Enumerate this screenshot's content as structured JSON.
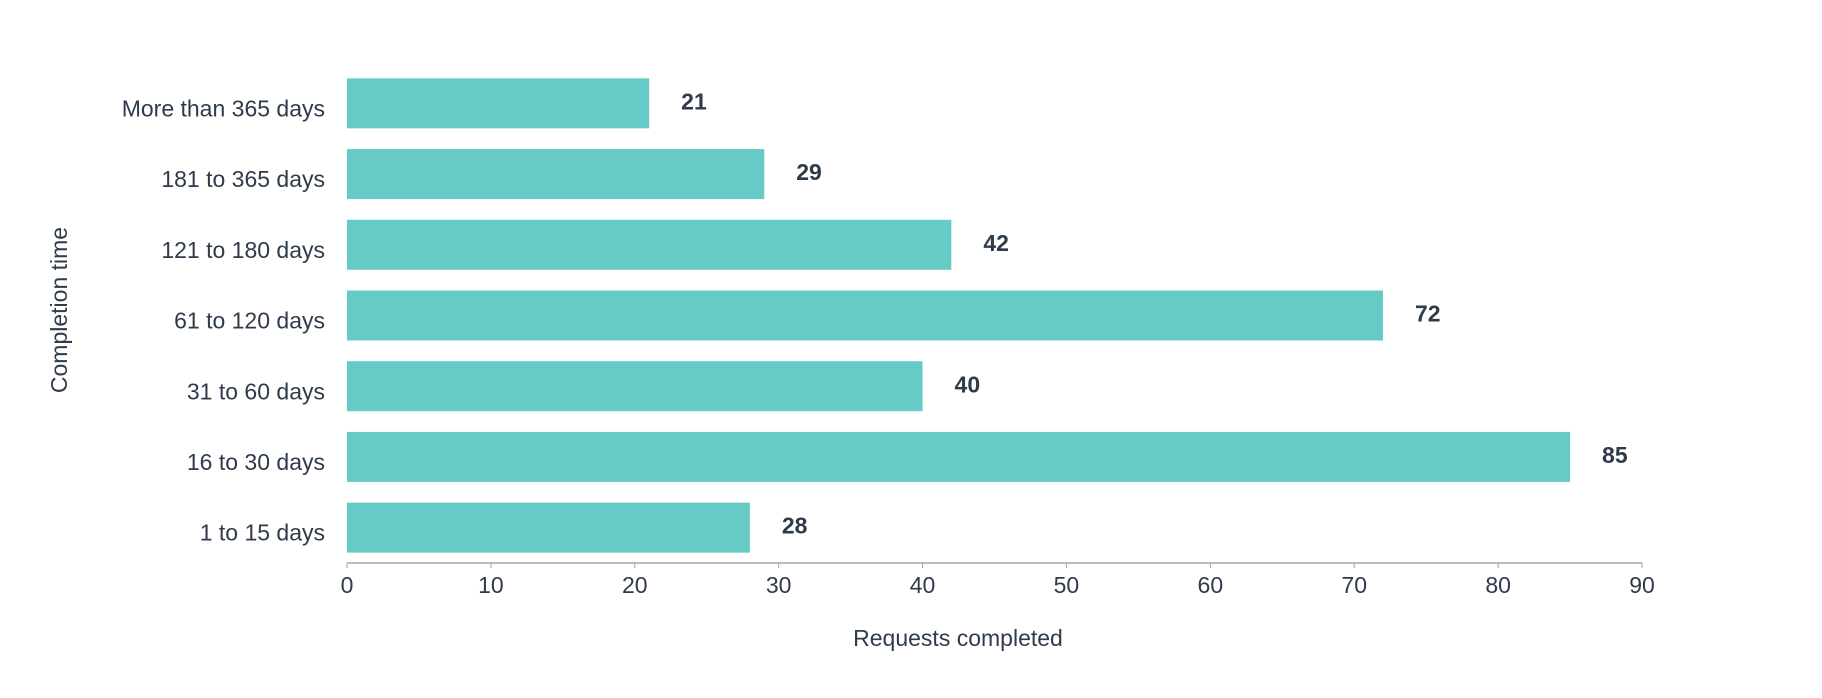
{
  "chart_data": {
    "type": "bar",
    "orientation": "horizontal",
    "x_label": "Requests completed",
    "y_label": "Completion time",
    "categories": [
      "More than 365 days",
      "181 to 365 days",
      "121 to 180 days",
      "61 to 120 days",
      "31 to 60 days",
      "16 to 30 days",
      "1 to 15 days"
    ],
    "values": [
      21,
      29,
      42,
      72,
      40,
      85,
      28
    ],
    "color": "#66cac6",
    "xlim": [
      0,
      90
    ],
    "xticks": [
      0,
      10,
      20,
      30,
      40,
      50,
      60,
      70,
      80,
      90
    ]
  }
}
